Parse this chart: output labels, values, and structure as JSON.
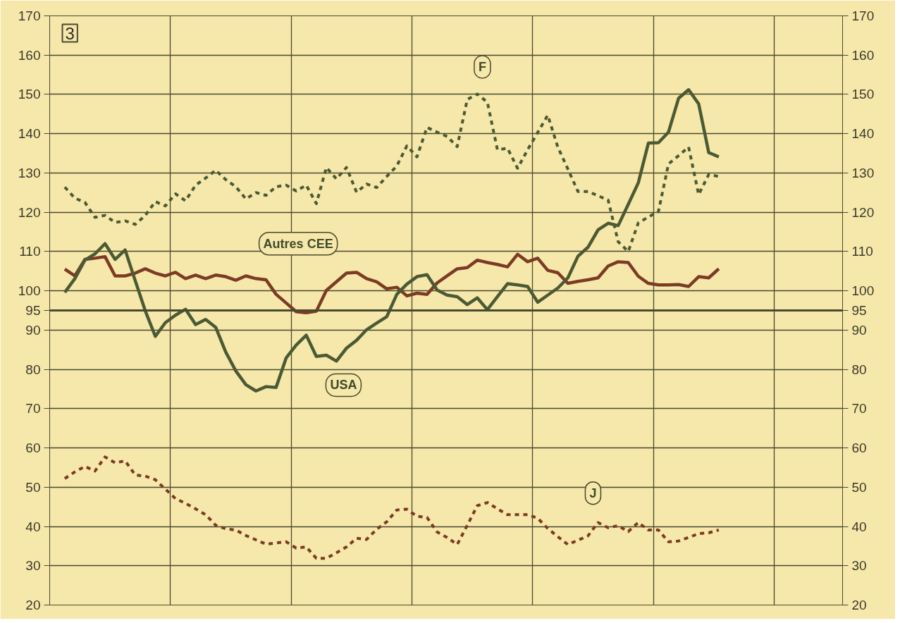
{
  "chart_data": {
    "type": "line",
    "annotations": [
      "3"
    ],
    "categories": [
      null,
      null,
      null,
      null,
      null,
      null,
      null,
      null,
      null,
      null,
      null,
      null,
      null,
      null,
      null,
      null,
      null,
      null,
      null,
      null,
      null,
      null,
      null,
      null,
      null,
      null,
      null,
      null,
      null,
      null,
      null,
      null,
      null,
      null,
      null,
      null,
      null,
      null,
      null,
      null,
      null,
      null,
      null,
      null,
      null,
      null,
      null,
      null,
      null,
      null,
      null,
      null,
      null,
      null,
      null,
      null,
      null,
      null,
      null,
      null,
      null,
      null,
      null,
      null,
      null,
      null
    ],
    "ylim": [
      20,
      170
    ],
    "yticks": [
      20,
      30,
      40,
      50,
      60,
      70,
      80,
      90,
      95,
      100,
      110,
      120,
      130,
      140,
      150,
      160,
      170
    ],
    "y2lim": [
      20,
      170
    ],
    "y2ticks": [
      20,
      30,
      40,
      50,
      60,
      70,
      80,
      90,
      95,
      100,
      110,
      120,
      130,
      140,
      150,
      160,
      170
    ],
    "tick_labels": "y",
    "grid": true,
    "ref_lines": [
      {
        "axis": "y",
        "value": 95
      }
    ],
    "series": [
      {
        "name": "F",
        "color": "#4b5a34",
        "line_style": "dashed",
        "values": [
          126.4,
          123.6,
          122.5,
          118.7,
          119.2,
          117.4,
          117.8,
          116.9,
          119.2,
          122.7,
          121.6,
          124.7,
          122.9,
          126.9,
          128.7,
          130.7,
          128.3,
          126.5,
          123.4,
          125.0,
          124.3,
          126.5,
          126.9,
          125.4,
          126.9,
          122.2,
          131.4,
          128.5,
          131.4,
          125.1,
          127.2,
          126.3,
          129.1,
          131.8,
          136.9,
          134.1,
          141.6,
          140.4,
          139.3,
          136.7,
          148.7,
          150.1,
          148.0,
          135.9,
          136.3,
          131.2,
          135.9,
          140.3,
          144.7,
          136.6,
          131.0,
          125.3,
          125.3,
          124.2,
          123.1,
          112.5,
          110.0,
          117.3,
          118.8,
          120.2,
          132.3,
          134.4,
          136.6,
          124.5,
          129.6,
          129.1
        ]
      },
      {
        "name": "Autres CEE",
        "color": "#7b3b24",
        "line_style": "solid",
        "values": [
          105.5,
          103.8,
          108.0,
          108.3,
          108.7,
          103.8,
          103.8,
          104.5,
          105.6,
          104.5,
          103.8,
          104.7,
          103.1,
          104.0,
          103.1,
          104.0,
          103.6,
          102.7,
          103.8,
          103.1,
          102.8,
          99.1,
          96.9,
          94.7,
          94.4,
          94.8,
          100.1,
          102.3,
          104.5,
          104.7,
          103.1,
          102.3,
          100.5,
          100.9,
          98.7,
          99.4,
          99.1,
          102.0,
          103.8,
          105.6,
          105.9,
          107.8,
          107.2,
          106.7,
          106.1,
          109.3,
          107.4,
          108.3,
          105.2,
          104.6,
          101.9,
          102.4,
          102.8,
          103.3,
          106.3,
          107.4,
          107.2,
          103.7,
          101.9,
          101.5,
          101.5,
          101.6,
          101.1,
          103.6,
          103.3,
          105.6
        ]
      },
      {
        "name": "USA",
        "color": "#4b5a34",
        "line_style": "solid",
        "values": [
          99.6,
          103.1,
          107.8,
          109.4,
          112.0,
          108.0,
          110.4,
          102.6,
          94.9,
          88.4,
          91.9,
          93.8,
          95.3,
          91.4,
          92.7,
          90.7,
          84.4,
          79.6,
          76.1,
          74.5,
          75.6,
          75.4,
          82.9,
          86.2,
          88.7,
          83.3,
          83.6,
          82.1,
          85.4,
          87.4,
          90.1,
          91.8,
          93.4,
          99.1,
          101.7,
          103.6,
          104.1,
          100.2,
          98.9,
          98.5,
          96.5,
          98.2,
          95.2,
          98.5,
          101.8,
          101.5,
          101.1,
          97.1,
          98.9,
          100.7,
          103.3,
          108.8,
          111.1,
          115.5,
          117.2,
          116.6,
          122.0,
          127.5,
          137.6,
          137.7,
          140.4,
          149.0,
          151.2,
          147.6,
          135.2,
          134.1
        ]
      },
      {
        "name": "J",
        "color": "#7b3b24",
        "line_style": "dashed",
        "values": [
          52.2,
          53.9,
          55.3,
          54.1,
          57.7,
          56.2,
          56.7,
          53.1,
          52.8,
          51.9,
          49.5,
          47.1,
          45.9,
          44.5,
          43.0,
          40.3,
          39.4,
          39.1,
          37.7,
          36.6,
          35.5,
          35.8,
          36.1,
          34.5,
          34.8,
          31.9,
          31.9,
          33.3,
          34.8,
          37.0,
          36.7,
          39.3,
          41.2,
          44.2,
          44.4,
          42.6,
          42.3,
          38.6,
          37.2,
          35.4,
          40.3,
          45.3,
          46.1,
          44.5,
          43.0,
          43.0,
          43.0,
          42.1,
          39.5,
          37.4,
          35.4,
          36.5,
          37.6,
          41.0,
          39.7,
          40.2,
          38.7,
          41.0,
          39.1,
          39.1,
          36.1,
          36.3,
          37.2,
          38.2,
          38.4,
          39.1
        ]
      }
    ]
  }
}
